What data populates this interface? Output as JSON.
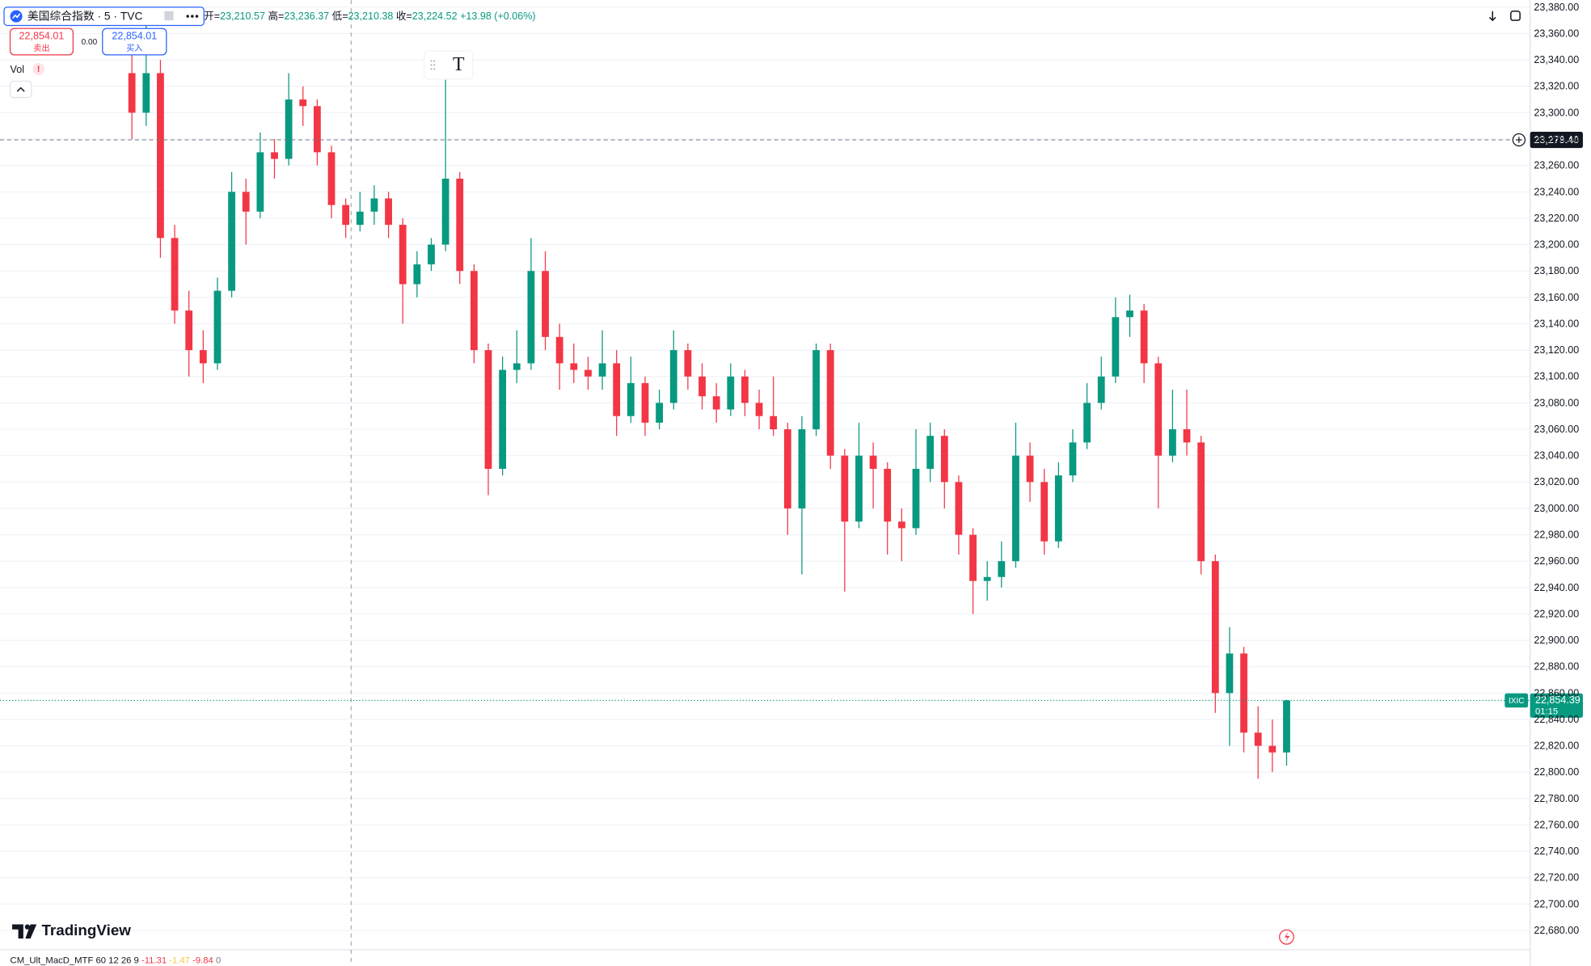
{
  "header": {
    "symbol": "美国综合指数 · 5 · TVC",
    "ohlc": [
      {
        "label": "开=",
        "value": "23,210.57"
      },
      {
        "label": "高=",
        "value": "23,236.37"
      },
      {
        "label": "低=",
        "value": "23,210.38"
      },
      {
        "label": "收=",
        "value": "23,224.52"
      }
    ],
    "change": "+13.98 (+0.06%)",
    "sell_price": "22,854.01",
    "sell_label": "卖出",
    "spread": "0.00",
    "buy_price": "22,854.01",
    "buy_label": "买入",
    "volume_label": "Vol",
    "alert": "!"
  },
  "toolbar": {
    "text_tool": "T"
  },
  "chart_data": {
    "type": "candlestick",
    "open": [
      23330,
      23300,
      23330,
      23205,
      23150,
      23120,
      23110,
      23165,
      23240,
      23225,
      23270,
      23265,
      23310,
      23305,
      23270,
      23230,
      23215,
      23225,
      23235,
      23215,
      23170,
      23185,
      23200,
      23250,
      23180,
      23120,
      23030,
      23105,
      23110,
      23180,
      23130,
      23110,
      23105,
      23100,
      23110,
      23070,
      23095,
      23065,
      23080,
      23120,
      23100,
      23085,
      23075,
      23100,
      23080,
      23070,
      23060,
      23000,
      23060,
      23120,
      23040,
      22990,
      23040,
      23030,
      22990,
      22985,
      23030,
      23055,
      23020,
      22980,
      22945,
      22948,
      22960,
      23040,
      23020,
      22975,
      23025,
      23050,
      23080,
      23100,
      23145,
      23150,
      23110,
      23040,
      23060,
      23050,
      22960,
      22860,
      22890,
      22830,
      22820,
      22815
    ],
    "high": [
      23345,
      23375,
      23340,
      23215,
      23165,
      23135,
      23175,
      23255,
      23250,
      23285,
      23280,
      23330,
      23320,
      23310,
      23275,
      23235,
      23240,
      23245,
      23240,
      23220,
      23195,
      23205,
      23325,
      23255,
      23185,
      23125,
      23115,
      23135,
      23205,
      23195,
      23140,
      23125,
      23115,
      23135,
      23120,
      23115,
      23100,
      23090,
      23135,
      23125,
      23110,
      23095,
      23110,
      23105,
      23090,
      23100,
      23065,
      23070,
      23125,
      23125,
      23045,
      23065,
      23050,
      23035,
      23000,
      23060,
      23065,
      23060,
      23025,
      22985,
      22960,
      22975,
      23065,
      23050,
      23030,
      23035,
      23060,
      23095,
      23115,
      23160,
      23162,
      23155,
      23115,
      23090,
      23090,
      23055,
      22965,
      22910,
      22895,
      22850,
      22840,
      22855
    ],
    "low": [
      23280,
      23290,
      23190,
      23140,
      23100,
      23095,
      23105,
      23160,
      23200,
      23220,
      23250,
      23260,
      23290,
      23260,
      23220,
      23205,
      23210,
      23215,
      23205,
      23140,
      23160,
      23180,
      23195,
      23170,
      23110,
      23010,
      23025,
      23095,
      23105,
      23120,
      23090,
      23095,
      23090,
      23090,
      23055,
      23065,
      23055,
      23060,
      23075,
      23090,
      23075,
      23065,
      23070,
      23070,
      23060,
      23055,
      22980,
      22950,
      23055,
      23030,
      22937,
      22985,
      23000,
      22965,
      22960,
      22980,
      23020,
      23000,
      22965,
      22920,
      22930,
      22940,
      22955,
      23005,
      22965,
      22970,
      23020,
      23045,
      23075,
      23095,
      23130,
      23095,
      23000,
      23035,
      23040,
      22950,
      22845,
      22820,
      22815,
      22795,
      22800,
      22805
    ],
    "close": [
      23300,
      23330,
      23205,
      23150,
      23120,
      23110,
      23165,
      23240,
      23225,
      23270,
      23265,
      23310,
      23305,
      23270,
      23230,
      23215,
      23225,
      23235,
      23215,
      23170,
      23185,
      23200,
      23250,
      23180,
      23120,
      23030,
      23105,
      23110,
      23180,
      23130,
      23110,
      23105,
      23100,
      23110,
      23070,
      23095,
      23065,
      23080,
      23120,
      23100,
      23085,
      23075,
      23100,
      23080,
      23070,
      23060,
      23000,
      23060,
      23120,
      23040,
      22990,
      23040,
      23030,
      22990,
      22985,
      23030,
      23055,
      23020,
      22980,
      22945,
      22948,
      22960,
      23040,
      23020,
      22975,
      23025,
      23050,
      23080,
      23100,
      23145,
      23150,
      23110,
      23040,
      23060,
      23050,
      22960,
      22860,
      22890,
      22830,
      22820,
      22815,
      22854.39
    ],
    "up_color": "#089981",
    "down_color": "#f23645",
    "ylim": [
      22666.2,
      23385.4
    ],
    "yticks": [
      {
        "value": 22680,
        "label": "22,680.00"
      },
      {
        "value": 22700,
        "label": "22,700.00"
      },
      {
        "value": 22720,
        "label": "22,720.00"
      },
      {
        "value": 22740,
        "label": "22,740.00"
      },
      {
        "value": 22760,
        "label": "22,760.00"
      },
      {
        "value": 22780,
        "label": "22,780.00"
      },
      {
        "value": 22800,
        "label": "22,800.00"
      },
      {
        "value": 22820,
        "label": "22,820.00"
      },
      {
        "value": 22840,
        "label": "22,840.00"
      },
      {
        "value": 22860,
        "label": "22,860.00"
      },
      {
        "value": 22880,
        "label": "22,880.00"
      },
      {
        "value": 22900,
        "label": "22,900.00"
      },
      {
        "value": 22920,
        "label": "22,920.00"
      },
      {
        "value": 22940,
        "label": "22,940.00"
      },
      {
        "value": 22960,
        "label": "22,960.00"
      },
      {
        "value": 22980,
        "label": "22,980.00"
      },
      {
        "value": 23000,
        "label": "23,000.00"
      },
      {
        "value": 23020,
        "label": "23,020.00"
      },
      {
        "value": 23040,
        "label": "23,040.00"
      },
      {
        "value": 23060,
        "label": "23,060.00"
      },
      {
        "value": 23080,
        "label": "23,080.00"
      },
      {
        "value": 23100,
        "label": "23,100.00"
      },
      {
        "value": 23120,
        "label": "23,120.00"
      },
      {
        "value": 23140,
        "label": "23,140.00"
      },
      {
        "value": 23160,
        "label": "23,160.00"
      },
      {
        "value": 23180,
        "label": "23,180.00"
      },
      {
        "value": 23200,
        "label": "23,200.00"
      },
      {
        "value": 23220,
        "label": "23,220.00"
      },
      {
        "value": 23240,
        "label": "23,240.00"
      },
      {
        "value": 23260,
        "label": "23,260.00"
      },
      {
        "value": 23280,
        "label": "23,280.00"
      },
      {
        "value": 23300,
        "label": "23,300.00"
      },
      {
        "value": 23320,
        "label": "23,320.00"
      },
      {
        "value": 23340,
        "label": "23,340.00"
      },
      {
        "value": 23360,
        "label": "23,360.00"
      },
      {
        "value": 23380,
        "label": "23,380.00"
      }
    ],
    "grid": true,
    "crosshair": {
      "value": 23279.4,
      "label": "23,279.40"
    },
    "last_price": {
      "symbol": "IXIC",
      "value": 22854.39,
      "label": "22,854.39",
      "countdown": "01:15"
    }
  },
  "footer": {
    "brand": "TradingView",
    "indicator": "CM_Ult_MacD_MTF 60 12 26 9",
    "indicator_values": [
      "-11.31",
      "-1.47",
      "-9.84",
      "0"
    ]
  }
}
